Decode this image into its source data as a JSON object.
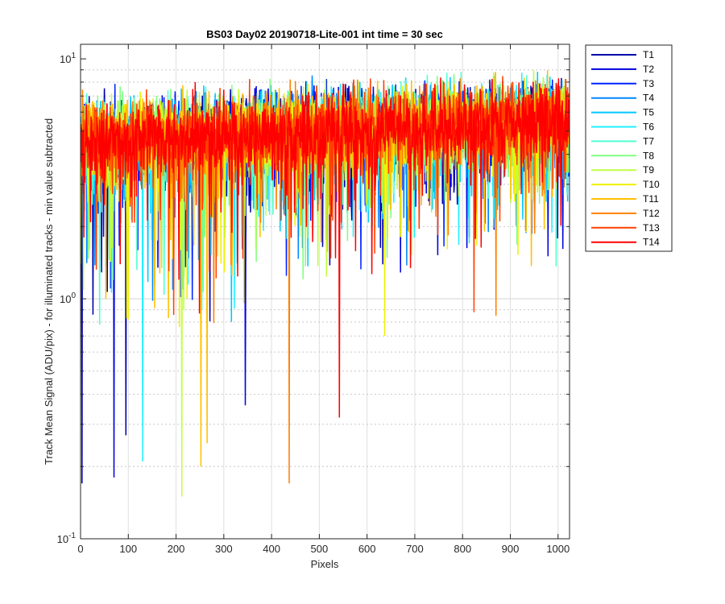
{
  "chart_data": {
    "type": "line",
    "title": "BS03 Day02 20190718-Lite-001 int time = 30 sec",
    "xlabel": "Pixels",
    "ylabel": "Track Mean Signal (ADU/pix) - for illuminated tracks - min value subtracted",
    "xlim": [
      0,
      1024
    ],
    "ylim": [
      0.1,
      11.5
    ],
    "yscale": "log",
    "xticks": [
      0,
      100,
      200,
      300,
      400,
      500,
      600,
      700,
      800,
      900,
      1000
    ],
    "xtick_labels": [
      "0",
      "100",
      "200",
      "300",
      "400",
      "500",
      "600",
      "700",
      "800",
      "900",
      "1000"
    ],
    "ytick_major_exponents": [
      -1,
      0,
      1
    ],
    "grid": "on",
    "legend_location": "outside-right",
    "trend": {
      "center_at_x0": 4.5,
      "center_at_x1024": 5.5,
      "upper_envelope_at_x0": 9,
      "upper_envelope_at_x1024": 10.5
    },
    "series": [
      {
        "name": "T1",
        "color": "#0000aa"
      },
      {
        "name": "T2",
        "color": "#0000dd"
      },
      {
        "name": "T3",
        "color": "#0022ff"
      },
      {
        "name": "T4",
        "color": "#0088ff"
      },
      {
        "name": "T5",
        "color": "#00c8ff"
      },
      {
        "name": "T6",
        "color": "#20f0ff"
      },
      {
        "name": "T7",
        "color": "#50ffd0"
      },
      {
        "name": "T8",
        "color": "#80ff80"
      },
      {
        "name": "T9",
        "color": "#c0ff40"
      },
      {
        "name": "T10",
        "color": "#f0f000"
      },
      {
        "name": "T11",
        "color": "#ffc000"
      },
      {
        "name": "T12",
        "color": "#ff8000"
      },
      {
        "name": "T13",
        "color": "#ff4000"
      },
      {
        "name": "T14",
        "color": "#ff0000"
      }
    ],
    "notable_dips": [
      {
        "series": "T1",
        "x": 3,
        "y": 0.17
      },
      {
        "series": "T2",
        "x": 70,
        "y": 0.18
      },
      {
        "series": "T1",
        "x": 95,
        "y": 0.27
      },
      {
        "series": "T6",
        "x": 130,
        "y": 0.21
      },
      {
        "series": "T9",
        "x": 212,
        "y": 0.15
      },
      {
        "series": "T11",
        "x": 252,
        "y": 0.2
      },
      {
        "series": "T11",
        "x": 265,
        "y": 0.25
      },
      {
        "series": "T2",
        "x": 345,
        "y": 0.36
      },
      {
        "series": "T12",
        "x": 437,
        "y": 0.17
      },
      {
        "series": "T14",
        "x": 542,
        "y": 0.32
      },
      {
        "series": "T10",
        "x": 637,
        "y": 0.7
      },
      {
        "series": "T13",
        "x": 824,
        "y": 0.88
      },
      {
        "series": "T12",
        "x": 870,
        "y": 0.85
      }
    ]
  }
}
